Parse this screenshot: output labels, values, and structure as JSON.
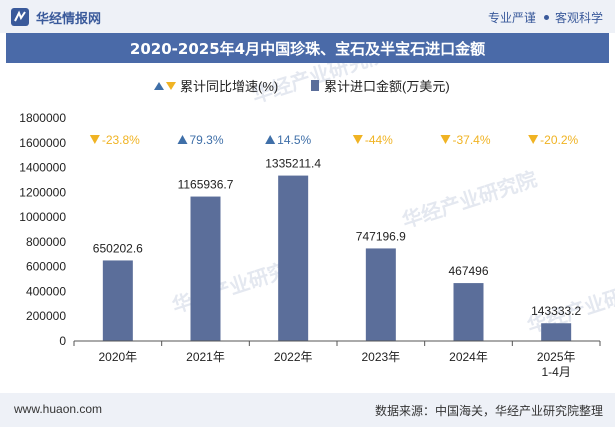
{
  "header": {
    "brand": "华经情报网",
    "slogan_left": "专业严谨",
    "slogan_right": "客观科学"
  },
  "title": "2020-2025年4月中国珍珠、宝石及半宝石进口金额",
  "legend": {
    "growth_label": "累计同比增速(%)",
    "amount_label": "累计进口金额(万美元)"
  },
  "footer": {
    "site": "www.huaon.com",
    "source": "数据来源：中国海关，华经产业研究院整理"
  },
  "watermark": "华经产业研究院",
  "colors": {
    "bar": "#5b6e9a",
    "up": "#3f6fa8",
    "down": "#f0b323",
    "title_bg": "#4a6aa8"
  },
  "chart_data": {
    "type": "bar",
    "categories": [
      "2020年",
      "2021年",
      "2022年",
      "2023年",
      "2024年",
      "2025年\n1-4月"
    ],
    "series": [
      {
        "name": "累计进口金额(万美元)",
        "values": [
          650202.6,
          1165936.7,
          1335211.4,
          747196.9,
          467496,
          143333.2
        ],
        "labels": [
          "650202.6",
          "1165936.7",
          "1335211.4",
          "747196.9",
          "467496",
          "143333.2"
        ]
      },
      {
        "name": "累计同比增速(%)",
        "values": [
          -23.8,
          79.3,
          14.5,
          -44,
          -37.4,
          -20.2
        ],
        "labels": [
          "-23.8%",
          "79.3%",
          "14.5%",
          "-44%",
          "-37.4%",
          "-20.2%"
        ]
      }
    ],
    "ylim": [
      0,
      1800000
    ],
    "yticks": [
      0,
      200000,
      400000,
      600000,
      800000,
      1000000,
      1200000,
      1400000,
      1600000,
      1800000
    ],
    "ytick_labels": [
      "0",
      "200000",
      "400000",
      "600000",
      "800000",
      "1000000",
      "1200000",
      "1400000",
      "1600000",
      "1800000"
    ],
    "grid": false,
    "legend_position": "top"
  }
}
